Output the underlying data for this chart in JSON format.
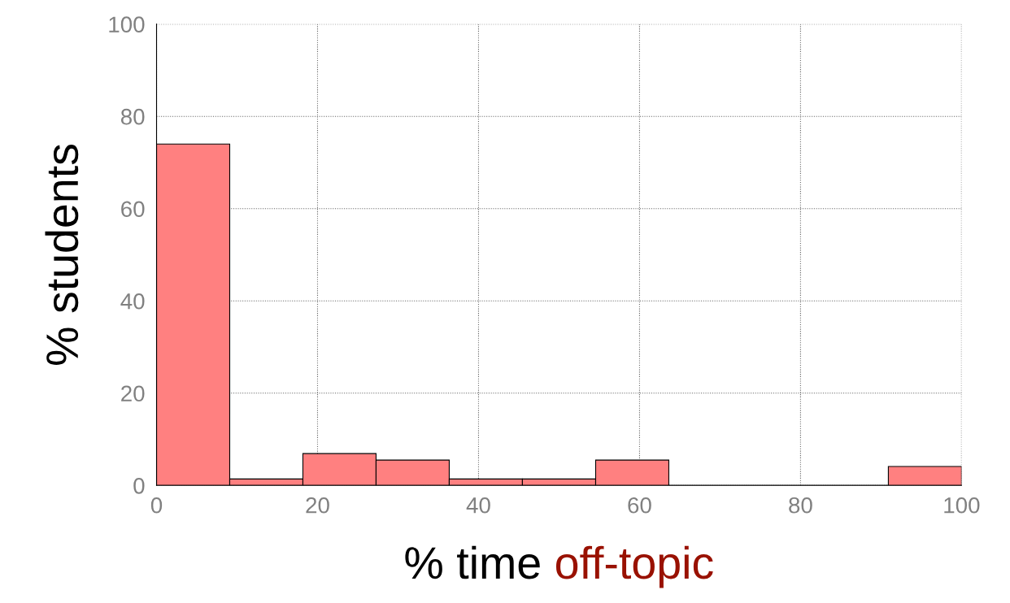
{
  "chart_data": {
    "type": "histogram",
    "xlabel": "% time off-topic",
    "ylabel": "% students",
    "bins": [
      0,
      9.09,
      18.18,
      27.27,
      36.36,
      45.45,
      54.55,
      63.64,
      72.73,
      81.82,
      90.91,
      100
    ],
    "values": [
      74,
      1.4,
      6.9,
      5.5,
      1.4,
      1.4,
      5.5,
      0,
      0,
      0,
      4.1
    ],
    "color": "#ff8080",
    "xlim": [
      0,
      100
    ],
    "xticks": [
      0,
      20,
      40,
      60,
      80,
      100
    ],
    "ylim": [
      0,
      100
    ],
    "yticks": [
      0,
      20,
      40,
      60,
      80,
      100
    ],
    "grid": true
  }
}
